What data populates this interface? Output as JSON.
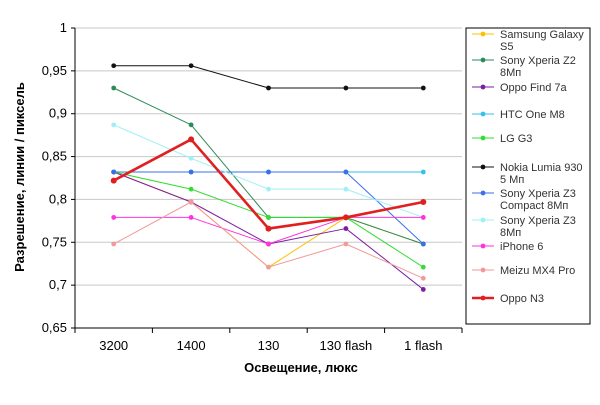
{
  "chart_data": {
    "type": "line",
    "categories": [
      "3200",
      "1400",
      "130",
      "130 flash",
      "1 flash"
    ],
    "xlabel": "Освещение, люкс",
    "ylabel": "Разрешение, линии / пиксель",
    "ylim": [
      0.65,
      1.0
    ],
    "yticks": [
      {
        "value": 0.65,
        "label": "0,65"
      },
      {
        "value": 0.7,
        "label": "0,7"
      },
      {
        "value": 0.75,
        "label": "0,75"
      },
      {
        "value": 0.8,
        "label": "0,8"
      },
      {
        "value": 0.85,
        "label": "0,85"
      },
      {
        "value": 0.9,
        "label": "0,9"
      },
      {
        "value": 0.95,
        "label": "0,95"
      },
      {
        "value": 1.0,
        "label": "1"
      }
    ],
    "grid": "horizontal",
    "legend_position": "right",
    "series": [
      {
        "name": "Samsung Galaxy S5",
        "color": "#ffc000",
        "values": [
          0.832,
          0.797,
          0.721,
          0.779,
          0.748
        ]
      },
      {
        "name": "Sony Xperia Z2 8Мп",
        "color": "#2e8b57",
        "values": [
          0.93,
          0.887,
          0.779,
          0.779,
          0.748
        ]
      },
      {
        "name": "Oppo Find 7a",
        "color": "#7b1fa2",
        "values": [
          0.832,
          0.797,
          0.748,
          0.766,
          0.695
        ]
      },
      {
        "name": "HTC One M8",
        "color": "#33c2e8",
        "values": [
          0.832,
          0.832,
          0.832,
          0.832,
          0.832
        ]
      },
      {
        "name": "LG G3",
        "color": "#33dd33",
        "values": [
          0.832,
          0.812,
          0.779,
          0.779,
          0.721
        ]
      },
      {
        "name": "Nokia Lumia 930 5 Мп",
        "color": "#111111",
        "values": [
          0.956,
          0.956,
          0.93,
          0.93,
          0.93
        ]
      },
      {
        "name": "Sony Xperia Z3 Compact 8Мп",
        "color": "#3a6fe8",
        "values": [
          0.832,
          0.832,
          0.832,
          0.832,
          0.748
        ]
      },
      {
        "name": "Sony Xperia Z3 8Мп",
        "color": "#9ef0f5",
        "values": [
          0.887,
          0.848,
          0.812,
          0.812,
          0.779
        ]
      },
      {
        "name": "iPhone 6",
        "color": "#ff33dd",
        "values": [
          0.779,
          0.779,
          0.748,
          0.779,
          0.779
        ]
      },
      {
        "name": "Meizu MX4 Pro",
        "color": "#f29a9a",
        "values": [
          0.748,
          0.797,
          0.721,
          0.748,
          0.708
        ]
      },
      {
        "name": "Oppo N3",
        "color": "#e02020",
        "values": [
          0.822,
          0.87,
          0.766,
          0.779,
          0.797
        ]
      }
    ],
    "highlight_series": "Oppo N3"
  }
}
